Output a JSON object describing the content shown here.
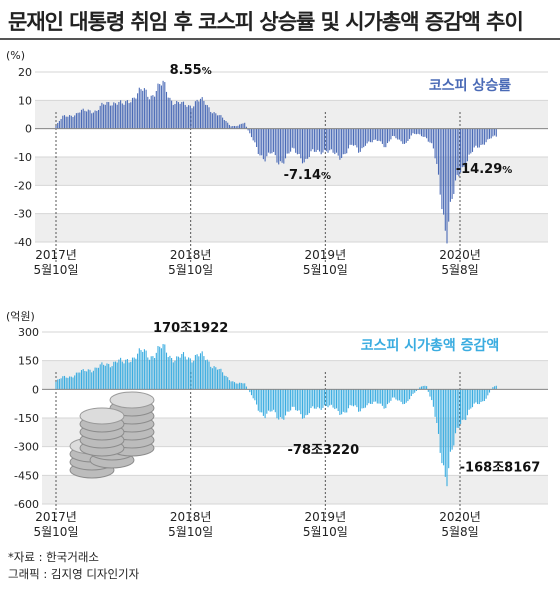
{
  "title": "문재인 대통령 취임 후 코스피 상승률 및 시가총액 증감액 추이",
  "colors": {
    "line": "#4a6ab6",
    "bar": "#3aace0",
    "grid_band": "#eeeeee"
  },
  "chart_data": [
    {
      "type": "area",
      "legend": "코스피 상승률",
      "unit": "(%)",
      "ylim": [
        -40,
        20
      ],
      "yticks": [
        "20",
        "10",
        "0",
        "-10",
        "-20",
        "-30",
        "-40"
      ],
      "ytick_values": [
        20,
        10,
        0,
        -10,
        -20,
        -30,
        -40
      ],
      "x_ticks": [
        {
          "year": "2017년",
          "date": "5월10일"
        },
        {
          "year": "2018년",
          "date": "5월10일"
        },
        {
          "year": "2019년",
          "date": "5월10일"
        },
        {
          "year": "2020년",
          "date": "5월8일"
        }
      ],
      "x_tick_values": [
        0,
        1,
        2,
        3
      ],
      "x_end": 3.28,
      "series": [
        {
          "x": [
            0,
            0.05,
            0.1,
            0.15,
            0.2,
            0.25,
            0.3,
            0.35,
            0.4,
            0.45,
            0.5,
            0.55,
            0.6,
            0.65,
            0.7,
            0.75,
            0.8,
            0.85,
            0.9,
            0.95,
            1,
            1.05,
            1.1,
            1.15,
            1.2,
            1.25,
            1.3,
            1.35,
            1.4,
            1.45,
            1.5,
            1.55,
            1.6,
            1.65,
            1.7,
            1.75,
            1.8,
            1.85,
            1.9,
            1.95,
            2,
            2.05,
            2.1,
            2.15,
            2.2,
            2.25,
            2.3,
            2.35,
            2.4,
            2.45,
            2.5,
            2.55,
            2.6,
            2.65,
            2.7,
            2.75,
            2.8,
            2.85,
            2.9,
            2.95,
            3,
            3.05,
            3.1,
            3.15,
            3.2,
            3.25
          ],
          "values": [
            1,
            4,
            5,
            5,
            6,
            7,
            6,
            8,
            10,
            9,
            8,
            11,
            12,
            13,
            12,
            14,
            15,
            11,
            9,
            8,
            8.55,
            10,
            9,
            7,
            5,
            3,
            1,
            1,
            2,
            -3,
            -8,
            -10,
            -9,
            -12,
            -10,
            -8,
            -9,
            -11,
            -9,
            -8,
            -7.14,
            -9,
            -10,
            -8,
            -6,
            -8,
            -5,
            -5,
            -4,
            -6,
            -3,
            -4,
            -5,
            -2,
            -2,
            -3,
            -7,
            -20,
            -36,
            -25,
            -14.29,
            -11,
            -8,
            -6,
            -4,
            -3
          ]
        }
      ],
      "annotations": [
        {
          "text": "8.55",
          "unit": "%",
          "x": 1,
          "y": 8.55
        },
        {
          "text": "-7.14",
          "unit": "%",
          "x": 2,
          "y": -7.14
        },
        {
          "text": "-14.29",
          "unit": "%",
          "x": 3,
          "y": -14.29
        }
      ]
    },
    {
      "type": "bar",
      "legend": "코스피 시가총액 증감액",
      "unit": "(억원)",
      "ylim": [
        -600,
        300
      ],
      "yticks": [
        "300",
        "150",
        "0",
        "-150",
        "-300",
        "-450",
        "-600"
      ],
      "ytick_values": [
        300,
        150,
        0,
        -150,
        -300,
        -450,
        -600
      ],
      "x_ticks": [
        {
          "year": "2017년",
          "date": "5월10일"
        },
        {
          "year": "2018년",
          "date": "5월10일"
        },
        {
          "year": "2019년",
          "date": "5월10일"
        },
        {
          "year": "2020년",
          "date": "5월8일"
        }
      ],
      "x_tick_values": [
        0,
        1,
        2,
        3
      ],
      "x_end": 3.28,
      "series": [
        {
          "x": [
            0,
            0.05,
            0.1,
            0.15,
            0.2,
            0.25,
            0.3,
            0.35,
            0.4,
            0.45,
            0.5,
            0.55,
            0.6,
            0.65,
            0.7,
            0.75,
            0.8,
            0.85,
            0.9,
            0.95,
            1,
            1.05,
            1.1,
            1.15,
            1.2,
            1.25,
            1.3,
            1.35,
            1.4,
            1.45,
            1.5,
            1.55,
            1.6,
            1.65,
            1.7,
            1.75,
            1.8,
            1.85,
            1.9,
            1.95,
            2,
            2.05,
            2.1,
            2.15,
            2.2,
            2.25,
            2.3,
            2.35,
            2.4,
            2.45,
            2.5,
            2.55,
            2.6,
            2.65,
            2.7,
            2.75,
            2.8,
            2.85,
            2.9,
            2.95,
            3,
            3.05,
            3.1,
            3.15,
            3.2,
            3.25
          ],
          "values": [
            40,
            60,
            70,
            80,
            90,
            110,
            110,
            120,
            140,
            150,
            130,
            170,
            180,
            190,
            180,
            200,
            210,
            180,
            160,
            165,
            170,
            180,
            160,
            140,
            110,
            70,
            50,
            30,
            30,
            -30,
            -100,
            -130,
            -120,
            -150,
            -130,
            -110,
            -110,
            -140,
            -110,
            -100,
            -78,
            -100,
            -120,
            -110,
            -90,
            -110,
            -80,
            -80,
            -70,
            -90,
            -50,
            -60,
            -70,
            -30,
            10,
            20,
            -90,
            -290,
            -450,
            -320,
            -168,
            -130,
            -90,
            -70,
            -40,
            20
          ]
        }
      ],
      "annotations": [
        {
          "text": "170조1922",
          "x": 1,
          "y": 170
        },
        {
          "text": "-78조3220",
          "x": 2,
          "y": -78
        },
        {
          "text": "-168조8167",
          "x": 3,
          "y": -168
        }
      ]
    }
  ],
  "footer": {
    "source": "*자료 : 한국거래소",
    "credit": "그래픽 : 김지영 디자인기자"
  }
}
